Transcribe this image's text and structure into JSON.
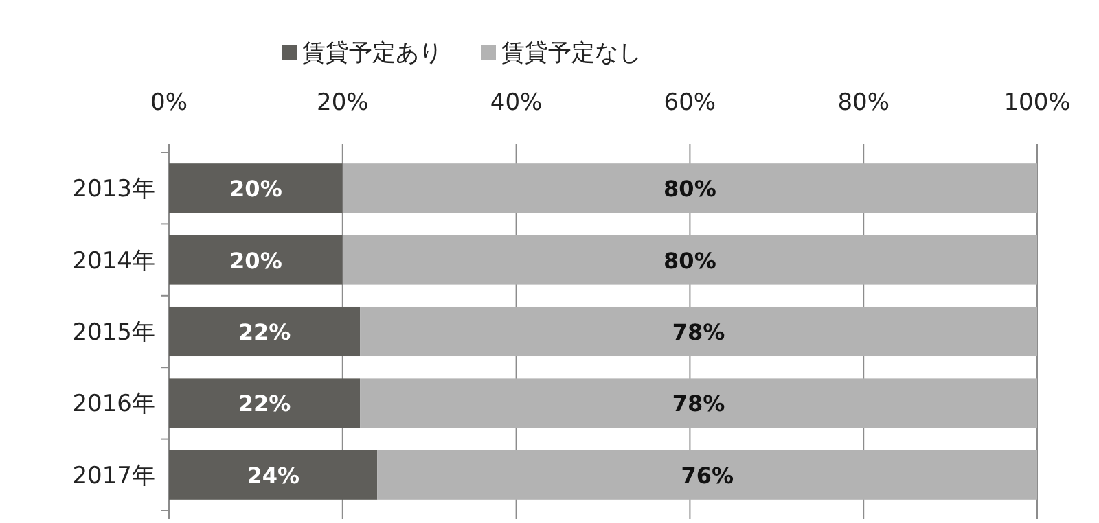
{
  "chart_data": {
    "type": "bar",
    "orientation": "horizontal",
    "stacked": true,
    "categories": [
      "2013年",
      "2014年",
      "2015年",
      "2016年",
      "2017年"
    ],
    "series": [
      {
        "name": "賃貸予定あり",
        "color": "#5f5e5a",
        "values": [
          20,
          20,
          22,
          22,
          24
        ],
        "value_labels": [
          "20%",
          "20%",
          "22%",
          "22%",
          "24%"
        ]
      },
      {
        "name": "賃貸予定なし",
        "color": "#b3b3b3",
        "values": [
          80,
          80,
          78,
          78,
          76
        ],
        "value_labels": [
          "80%",
          "80%",
          "78%",
          "78%",
          "76%"
        ]
      }
    ],
    "xlim": [
      0,
      100
    ],
    "xticks": [
      {
        "value": 0,
        "label": "0%"
      },
      {
        "value": 20,
        "label": "20%"
      },
      {
        "value": 40,
        "label": "40%"
      },
      {
        "value": 60,
        "label": "60%"
      },
      {
        "value": 80,
        "label": "80%"
      },
      {
        "value": 100,
        "label": "100%"
      }
    ],
    "grid": "x",
    "legend": "top"
  }
}
